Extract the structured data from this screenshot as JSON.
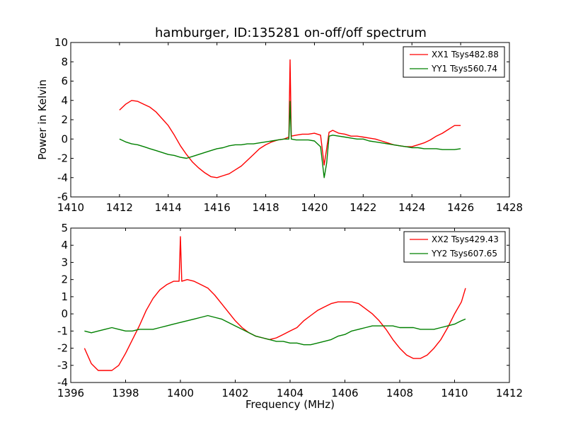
{
  "figure": {
    "title": "hamburger, ID:135281 on-off/off spectrum"
  },
  "chart_data": [
    {
      "type": "line",
      "title": "hamburger, ID:135281 on-off/off spectrum",
      "xlabel": "",
      "ylabel": "Power in Kelvin",
      "xlim": [
        1410,
        1428
      ],
      "ylim": [
        -6,
        10
      ],
      "xticks": [
        1410,
        1412,
        1414,
        1416,
        1418,
        1420,
        1422,
        1424,
        1426,
        1428
      ],
      "yticks": [
        -6,
        -4,
        -2,
        0,
        2,
        4,
        6,
        8,
        10
      ],
      "grid": false,
      "legend": "top-right",
      "series": [
        {
          "name": "XX1 Tsys482.88",
          "color": "#ff0000",
          "x": [
            1412.0,
            1412.25,
            1412.5,
            1412.75,
            1413.0,
            1413.25,
            1413.5,
            1413.75,
            1414.0,
            1414.25,
            1414.5,
            1414.75,
            1415.0,
            1415.25,
            1415.5,
            1415.75,
            1416.0,
            1416.25,
            1416.5,
            1416.75,
            1417.0,
            1417.25,
            1417.5,
            1417.75,
            1418.0,
            1418.25,
            1418.5,
            1418.75,
            1418.95,
            1419.0,
            1419.05,
            1419.25,
            1419.5,
            1419.75,
            1420.0,
            1420.25,
            1420.4,
            1420.5,
            1420.6,
            1420.75,
            1421.0,
            1421.25,
            1421.5,
            1421.75,
            1422.0,
            1422.25,
            1422.5,
            1422.75,
            1423.0,
            1423.25,
            1423.5,
            1423.75,
            1424.0,
            1424.25,
            1424.5,
            1424.75,
            1425.0,
            1425.25,
            1425.5,
            1425.75,
            1426.0
          ],
          "y": [
            3.0,
            3.6,
            4.0,
            3.9,
            3.6,
            3.3,
            2.8,
            2.1,
            1.4,
            0.4,
            -0.7,
            -1.6,
            -2.4,
            -3.0,
            -3.5,
            -3.9,
            -4.0,
            -3.8,
            -3.6,
            -3.2,
            -2.8,
            -2.2,
            -1.6,
            -1.0,
            -0.6,
            -0.3,
            -0.1,
            0.0,
            0.2,
            8.2,
            0.3,
            0.4,
            0.5,
            0.5,
            0.6,
            0.4,
            -2.7,
            -1.0,
            0.7,
            0.9,
            0.6,
            0.5,
            0.3,
            0.3,
            0.2,
            0.1,
            0.0,
            -0.2,
            -0.4,
            -0.6,
            -0.7,
            -0.8,
            -0.8,
            -0.6,
            -0.4,
            -0.1,
            0.3,
            0.6,
            1.0,
            1.4,
            1.4
          ]
        },
        {
          "name": "YY1 Tsys560.74",
          "color": "#008000",
          "x": [
            1412.0,
            1412.25,
            1412.5,
            1412.75,
            1413.0,
            1413.25,
            1413.5,
            1413.75,
            1414.0,
            1414.25,
            1414.5,
            1414.75,
            1415.0,
            1415.25,
            1415.5,
            1415.75,
            1416.0,
            1416.25,
            1416.5,
            1416.75,
            1417.0,
            1417.25,
            1417.5,
            1417.75,
            1418.0,
            1418.25,
            1418.5,
            1418.75,
            1418.95,
            1419.0,
            1419.05,
            1419.25,
            1419.5,
            1419.75,
            1420.0,
            1420.25,
            1420.4,
            1420.5,
            1420.6,
            1420.75,
            1421.0,
            1421.25,
            1421.5,
            1421.75,
            1422.0,
            1422.25,
            1422.5,
            1422.75,
            1423.0,
            1423.25,
            1423.5,
            1423.75,
            1424.0,
            1424.25,
            1424.5,
            1424.75,
            1425.0,
            1425.25,
            1425.5,
            1425.75,
            1426.0
          ],
          "y": [
            0.0,
            -0.3,
            -0.5,
            -0.6,
            -0.8,
            -1.0,
            -1.2,
            -1.4,
            -1.6,
            -1.7,
            -1.9,
            -2.0,
            -1.8,
            -1.6,
            -1.4,
            -1.2,
            -1.0,
            -0.9,
            -0.7,
            -0.6,
            -0.6,
            -0.5,
            -0.5,
            -0.4,
            -0.3,
            -0.2,
            -0.1,
            0.0,
            0.0,
            3.9,
            0.0,
            -0.1,
            -0.1,
            -0.1,
            -0.2,
            -0.8,
            -4.0,
            -2.5,
            0.3,
            0.4,
            0.3,
            0.2,
            0.1,
            0.0,
            0.0,
            -0.2,
            -0.3,
            -0.4,
            -0.5,
            -0.6,
            -0.7,
            -0.8,
            -0.9,
            -0.9,
            -1.0,
            -1.0,
            -1.0,
            -1.1,
            -1.1,
            -1.1,
            -1.0
          ]
        }
      ]
    },
    {
      "type": "line",
      "title": "",
      "xlabel": "Frequency (MHz)",
      "ylabel": "",
      "xlim": [
        1396,
        1412
      ],
      "ylim": [
        -4,
        5
      ],
      "xticks": [
        1396,
        1398,
        1400,
        1402,
        1404,
        1406,
        1408,
        1410,
        1412
      ],
      "yticks": [
        -4,
        -3,
        -2,
        -1,
        0,
        1,
        2,
        3,
        4,
        5
      ],
      "grid": false,
      "legend": "top-right",
      "series": [
        {
          "name": "XX2 Tsys429.43",
          "color": "#ff0000",
          "x": [
            1396.5,
            1396.75,
            1397.0,
            1397.25,
            1397.5,
            1397.75,
            1398.0,
            1398.25,
            1398.5,
            1398.75,
            1399.0,
            1399.25,
            1399.5,
            1399.75,
            1399.95,
            1400.0,
            1400.05,
            1400.25,
            1400.5,
            1400.75,
            1401.0,
            1401.25,
            1401.5,
            1401.75,
            1402.0,
            1402.25,
            1402.5,
            1402.75,
            1403.0,
            1403.25,
            1403.5,
            1403.75,
            1404.0,
            1404.25,
            1404.5,
            1404.75,
            1405.0,
            1405.25,
            1405.5,
            1405.75,
            1406.0,
            1406.25,
            1406.5,
            1406.75,
            1407.0,
            1407.25,
            1407.5,
            1407.75,
            1408.0,
            1408.25,
            1408.5,
            1408.75,
            1409.0,
            1409.25,
            1409.5,
            1409.75,
            1410.0,
            1410.25,
            1410.4
          ],
          "y": [
            -2.0,
            -2.9,
            -3.3,
            -3.3,
            -3.3,
            -3.0,
            -2.3,
            -1.5,
            -0.7,
            0.2,
            0.9,
            1.4,
            1.7,
            1.9,
            1.9,
            4.5,
            1.9,
            2.0,
            1.9,
            1.7,
            1.5,
            1.1,
            0.6,
            0.1,
            -0.4,
            -0.8,
            -1.1,
            -1.3,
            -1.4,
            -1.5,
            -1.4,
            -1.2,
            -1.0,
            -0.8,
            -0.4,
            -0.1,
            0.2,
            0.4,
            0.6,
            0.7,
            0.7,
            0.7,
            0.6,
            0.3,
            0.0,
            -0.4,
            -0.9,
            -1.5,
            -2.0,
            -2.4,
            -2.6,
            -2.6,
            -2.4,
            -2.0,
            -1.5,
            -0.8,
            0.0,
            0.7,
            1.5
          ]
        },
        {
          "name": "YY2 Tsys607.65",
          "color": "#008000",
          "x": [
            1396.5,
            1396.75,
            1397.0,
            1397.25,
            1397.5,
            1397.75,
            1398.0,
            1398.25,
            1398.5,
            1398.75,
            1399.0,
            1399.25,
            1399.5,
            1399.75,
            1400.0,
            1400.25,
            1400.5,
            1400.75,
            1401.0,
            1401.25,
            1401.5,
            1401.75,
            1402.0,
            1402.25,
            1402.5,
            1402.75,
            1403.0,
            1403.25,
            1403.5,
            1403.75,
            1404.0,
            1404.25,
            1404.5,
            1404.75,
            1405.0,
            1405.25,
            1405.5,
            1405.75,
            1406.0,
            1406.25,
            1406.5,
            1406.75,
            1407.0,
            1407.25,
            1407.5,
            1407.75,
            1408.0,
            1408.25,
            1408.5,
            1408.75,
            1409.0,
            1409.25,
            1409.5,
            1409.75,
            1410.0,
            1410.25,
            1410.4
          ],
          "y": [
            -1.0,
            -1.1,
            -1.0,
            -0.9,
            -0.8,
            -0.9,
            -1.0,
            -1.0,
            -0.9,
            -0.9,
            -0.9,
            -0.8,
            -0.7,
            -0.6,
            -0.5,
            -0.4,
            -0.3,
            -0.2,
            -0.1,
            -0.2,
            -0.3,
            -0.5,
            -0.7,
            -0.9,
            -1.1,
            -1.3,
            -1.4,
            -1.5,
            -1.6,
            -1.6,
            -1.7,
            -1.7,
            -1.8,
            -1.8,
            -1.7,
            -1.6,
            -1.5,
            -1.3,
            -1.2,
            -1.0,
            -0.9,
            -0.8,
            -0.7,
            -0.7,
            -0.7,
            -0.7,
            -0.8,
            -0.8,
            -0.8,
            -0.9,
            -0.9,
            -0.9,
            -0.8,
            -0.7,
            -0.6,
            -0.4,
            -0.3
          ]
        }
      ]
    }
  ]
}
